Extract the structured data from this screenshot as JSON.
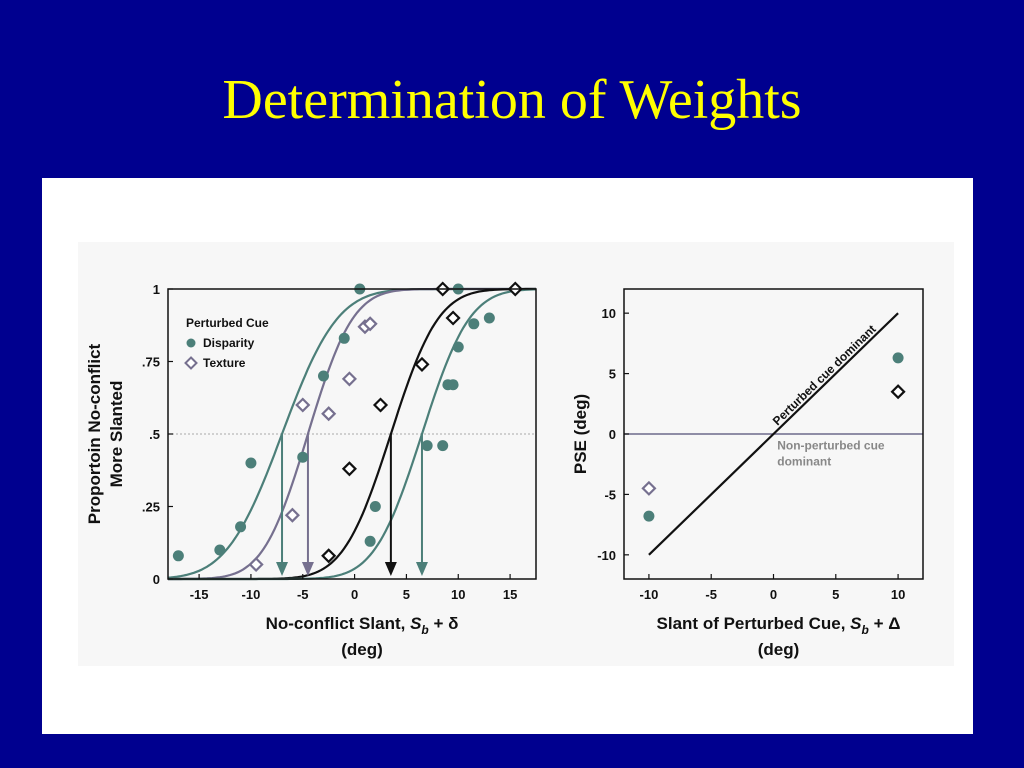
{
  "slide": {
    "title": "Determination of Weights"
  },
  "colors": {
    "background": "#00008f",
    "title": "#ffff00",
    "disparity": "#4c7f79",
    "texture": "#76708f",
    "black": "#111111",
    "refline": "#6d6a8c",
    "gray_text": "#888888"
  },
  "chart_data": [
    {
      "type": "scatter",
      "ylabel_lines": [
        "Proportoin No-conflict",
        "More Slanted"
      ],
      "xlabel": {
        "main": "No-conflict Slant, ",
        "var": "S",
        "sub": "b",
        "op": " + δ",
        "unit": "(deg)"
      },
      "xlim": [
        -18,
        17.5
      ],
      "ylim": [
        0,
        1
      ],
      "x_ticks": [
        -15,
        -10,
        -5,
        0,
        5,
        10,
        15
      ],
      "x_tick_labels": [
        "-15",
        "-10",
        "-5",
        "0",
        "5",
        "10",
        "15"
      ],
      "y_ticks": [
        0,
        0.25,
        0.5,
        0.75,
        1
      ],
      "y_tick_labels": [
        "0",
        ".25",
        ".5",
        ".75",
        "1"
      ],
      "reference_line": {
        "y": 0.5
      },
      "legend": {
        "title": "Perturbed Cue",
        "placement": "top-left",
        "entries": [
          {
            "label": "Disparity",
            "marker": "circle",
            "color": "#4c7f79"
          },
          {
            "label": "Texture",
            "marker": "diamond",
            "color": "#76708f"
          }
        ]
      },
      "curves": [
        {
          "color": "#4c7f79",
          "mu": -7,
          "sigma": 4.2
        },
        {
          "color": "#76708f",
          "mu": -4.5,
          "sigma": 3.4
        },
        {
          "color": "#111111",
          "mu": 3.5,
          "sigma": 3.6
        },
        {
          "color": "#4c7f79",
          "mu": 6.5,
          "sigma": 3.6
        }
      ],
      "pse_arrows": [
        {
          "x": -7,
          "color": "#4c7f79"
        },
        {
          "x": -4.5,
          "color": "#76708f"
        },
        {
          "x": 3.5,
          "color": "#111111"
        },
        {
          "x": 6.5,
          "color": "#4c7f79"
        }
      ],
      "series": [
        {
          "marker": "circle",
          "color": "#4c7f79",
          "points": [
            [
              -17,
              0.08
            ],
            [
              -13,
              0.1
            ],
            [
              -11,
              0.18
            ],
            [
              -10,
              0.4
            ],
            [
              -5,
              0.42
            ],
            [
              -3,
              0.7
            ],
            [
              -1,
              0.83
            ],
            [
              0.5,
              1.0
            ]
          ]
        },
        {
          "marker": "diamond",
          "color": "#76708f",
          "points": [
            [
              -9.5,
              0.05
            ],
            [
              -6,
              0.22
            ],
            [
              -5,
              0.6
            ],
            [
              -2.5,
              0.57
            ],
            [
              -0.5,
              0.69
            ],
            [
              1,
              0.87
            ],
            [
              1.5,
              0.88
            ]
          ]
        },
        {
          "marker": "diamond",
          "color": "#111111",
          "points": [
            [
              -2.5,
              0.08
            ],
            [
              -0.5,
              0.38
            ],
            [
              2.5,
              0.6
            ],
            [
              6.5,
              0.74
            ],
            [
              8.5,
              1.0
            ],
            [
              9.5,
              0.9
            ],
            [
              15.5,
              1.0
            ]
          ]
        },
        {
          "marker": "circle",
          "color": "#4c7f79",
          "points": [
            [
              1.5,
              0.13
            ],
            [
              2,
              0.25
            ],
            [
              7,
              0.46
            ],
            [
              8.5,
              0.46
            ],
            [
              9,
              0.67
            ],
            [
              9.5,
              0.67
            ],
            [
              10,
              0.8
            ],
            [
              11.5,
              0.88
            ],
            [
              13,
              0.9
            ],
            [
              10,
              1.0
            ]
          ]
        }
      ]
    },
    {
      "type": "scatter",
      "ylabel": "PSE (deg)",
      "xlabel": {
        "main": "Slant of Perturbed Cue, ",
        "var": "S",
        "sub": "b",
        "op": " + Δ",
        "unit": "(deg)"
      },
      "xlim": [
        -12,
        12
      ],
      "ylim": [
        -12,
        12
      ],
      "x_ticks": [
        -10,
        -5,
        0,
        5,
        10
      ],
      "x_tick_labels": [
        "-10",
        "-5",
        "0",
        "5",
        "10"
      ],
      "y_ticks": [
        -10,
        -5,
        0,
        5,
        10
      ],
      "y_tick_labels": [
        "-10",
        "-5",
        "0",
        "5",
        "10"
      ],
      "reference_line": {
        "y": 0
      },
      "diagonal": {
        "from": [
          -10,
          -10
        ],
        "to": [
          10,
          10
        ]
      },
      "annotations": [
        {
          "text": "Perturbed cue dominant"
        },
        {
          "text": "Non-perturbed cue",
          "text2": "dominant"
        }
      ],
      "series": [
        {
          "name": "Disparity",
          "marker": "circle",
          "color": "#4c7f79",
          "points": [
            [
              -10,
              -6.8
            ],
            [
              10,
              6.3
            ]
          ]
        },
        {
          "name": "Texture",
          "marker": "diamond",
          "color": "#76708f",
          "points": [
            [
              -10,
              -4.5
            ]
          ]
        },
        {
          "name": "Texture",
          "marker": "diamond",
          "color": "#111111",
          "points": [
            [
              10,
              3.5
            ]
          ]
        }
      ]
    }
  ]
}
